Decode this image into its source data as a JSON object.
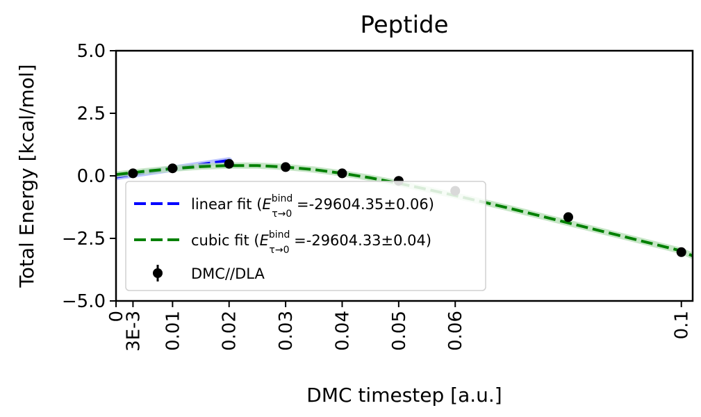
{
  "chart_data": {
    "type": "line",
    "title": "Peptide",
    "xlabel": "DMC timestep [a.u.]",
    "ylabel": "Total Energy [kcal/mol]",
    "xlim": [
      0,
      0.102
    ],
    "ylim": [
      -5.0,
      5.0
    ],
    "x_ticks": [
      {
        "value": 0,
        "label": "0"
      },
      {
        "value": 0.003,
        "label": "3E-3"
      },
      {
        "value": 0.01,
        "label": "0.01"
      },
      {
        "value": 0.02,
        "label": "0.02"
      },
      {
        "value": 0.03,
        "label": "0.03"
      },
      {
        "value": 0.04,
        "label": "0.04"
      },
      {
        "value": 0.05,
        "label": "0.05"
      },
      {
        "value": 0.06,
        "label": "0.06"
      },
      {
        "value": 0.1,
        "label": "0.1"
      }
    ],
    "y_ticks": [
      {
        "value": 5.0,
        "label": "5.0"
      },
      {
        "value": 2.5,
        "label": "2.5"
      },
      {
        "value": 0.0,
        "label": "0.0"
      },
      {
        "value": -2.5,
        "label": "−2.5"
      },
      {
        "value": -5.0,
        "label": "−5.0"
      }
    ],
    "grid": false,
    "legend_position": "lower-left",
    "series": [
      {
        "name": "DMC//DLA",
        "kind": "scatter-errorbar",
        "color": "#000000",
        "x": [
          0.003,
          0.01,
          0.02,
          0.03,
          0.04,
          0.05,
          0.06,
          0.08,
          0.1
        ],
        "y": [
          0.1,
          0.3,
          0.48,
          0.35,
          0.1,
          -0.2,
          -0.6,
          -1.65,
          -3.05
        ]
      },
      {
        "name": "linear fit",
        "kind": "dashed-line",
        "color": "#0000ff",
        "band_color": "#aab4ff",
        "x": [
          0,
          0.02
        ],
        "y": [
          -0.05,
          0.62
        ]
      },
      {
        "name": "cubic fit",
        "kind": "dashed-line",
        "color": "#008000",
        "band_color": "#b9e0b9",
        "x": [
          0,
          0.005,
          0.01,
          0.015,
          0.02,
          0.025,
          0.03,
          0.035,
          0.04,
          0.045,
          0.05,
          0.055,
          0.06,
          0.065,
          0.07,
          0.075,
          0.08,
          0.085,
          0.09,
          0.095,
          0.1,
          0.102
        ],
        "y": [
          0.05,
          0.18,
          0.29,
          0.37,
          0.41,
          0.41,
          0.35,
          0.25,
          0.1,
          -0.08,
          -0.3,
          -0.54,
          -0.79,
          -1.05,
          -1.32,
          -1.6,
          -1.88,
          -2.16,
          -2.44,
          -2.72,
          -3.0,
          -3.2
        ]
      }
    ],
    "legend": [
      {
        "label": "linear fit (",
        "symbol": "E",
        "sup": "bind",
        "sub": "τ→0",
        "value": " =-29604.35±0.06)",
        "color": "#0000ff",
        "style": "dashed"
      },
      {
        "label": "cubic fit (",
        "symbol": "E",
        "sup": "bind",
        "sub": "τ→0",
        "value": " =-29604.33±0.04)",
        "color": "#008000",
        "style": "dashed"
      },
      {
        "label": "DMC//DLA",
        "color": "#000000",
        "style": "errorbar"
      }
    ]
  }
}
